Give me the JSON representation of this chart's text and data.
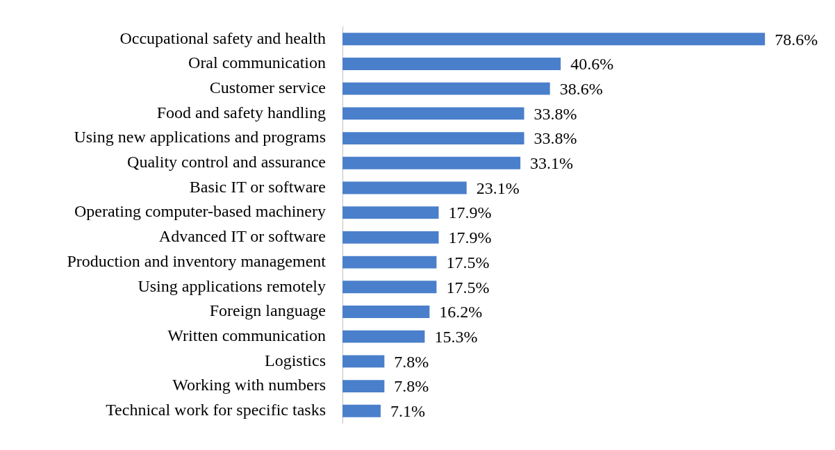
{
  "chart_data": {
    "type": "bar",
    "orientation": "horizontal",
    "categories": [
      "Occupational safety and health",
      "Oral communication",
      "Customer service",
      "Food and safety handling",
      "Using new applications and programs",
      "Quality control and assurance",
      "Basic IT or software",
      "Operating computer-based machinery",
      "Advanced IT or software",
      "Production and inventory management",
      "Using applications remotely",
      "Foreign language",
      "Written communication",
      "Logistics",
      "Working with numbers",
      "Technical work for specific tasks"
    ],
    "values": [
      78.6,
      40.6,
      38.6,
      33.8,
      33.8,
      33.1,
      23.1,
      17.9,
      17.9,
      17.5,
      17.5,
      16.2,
      15.3,
      7.8,
      7.8,
      7.1
    ],
    "value_labels": [
      "78.6%",
      "40.6%",
      "38.6%",
      "33.8%",
      "33.8%",
      "33.1%",
      "23.1%",
      "17.9%",
      "17.9%",
      "17.5%",
      "17.5%",
      "16.2%",
      "15.3%",
      "7.8%",
      "7.8%",
      "7.1%"
    ],
    "color": "#4a7fcb",
    "legend": false,
    "tick_labels": "y"
  }
}
